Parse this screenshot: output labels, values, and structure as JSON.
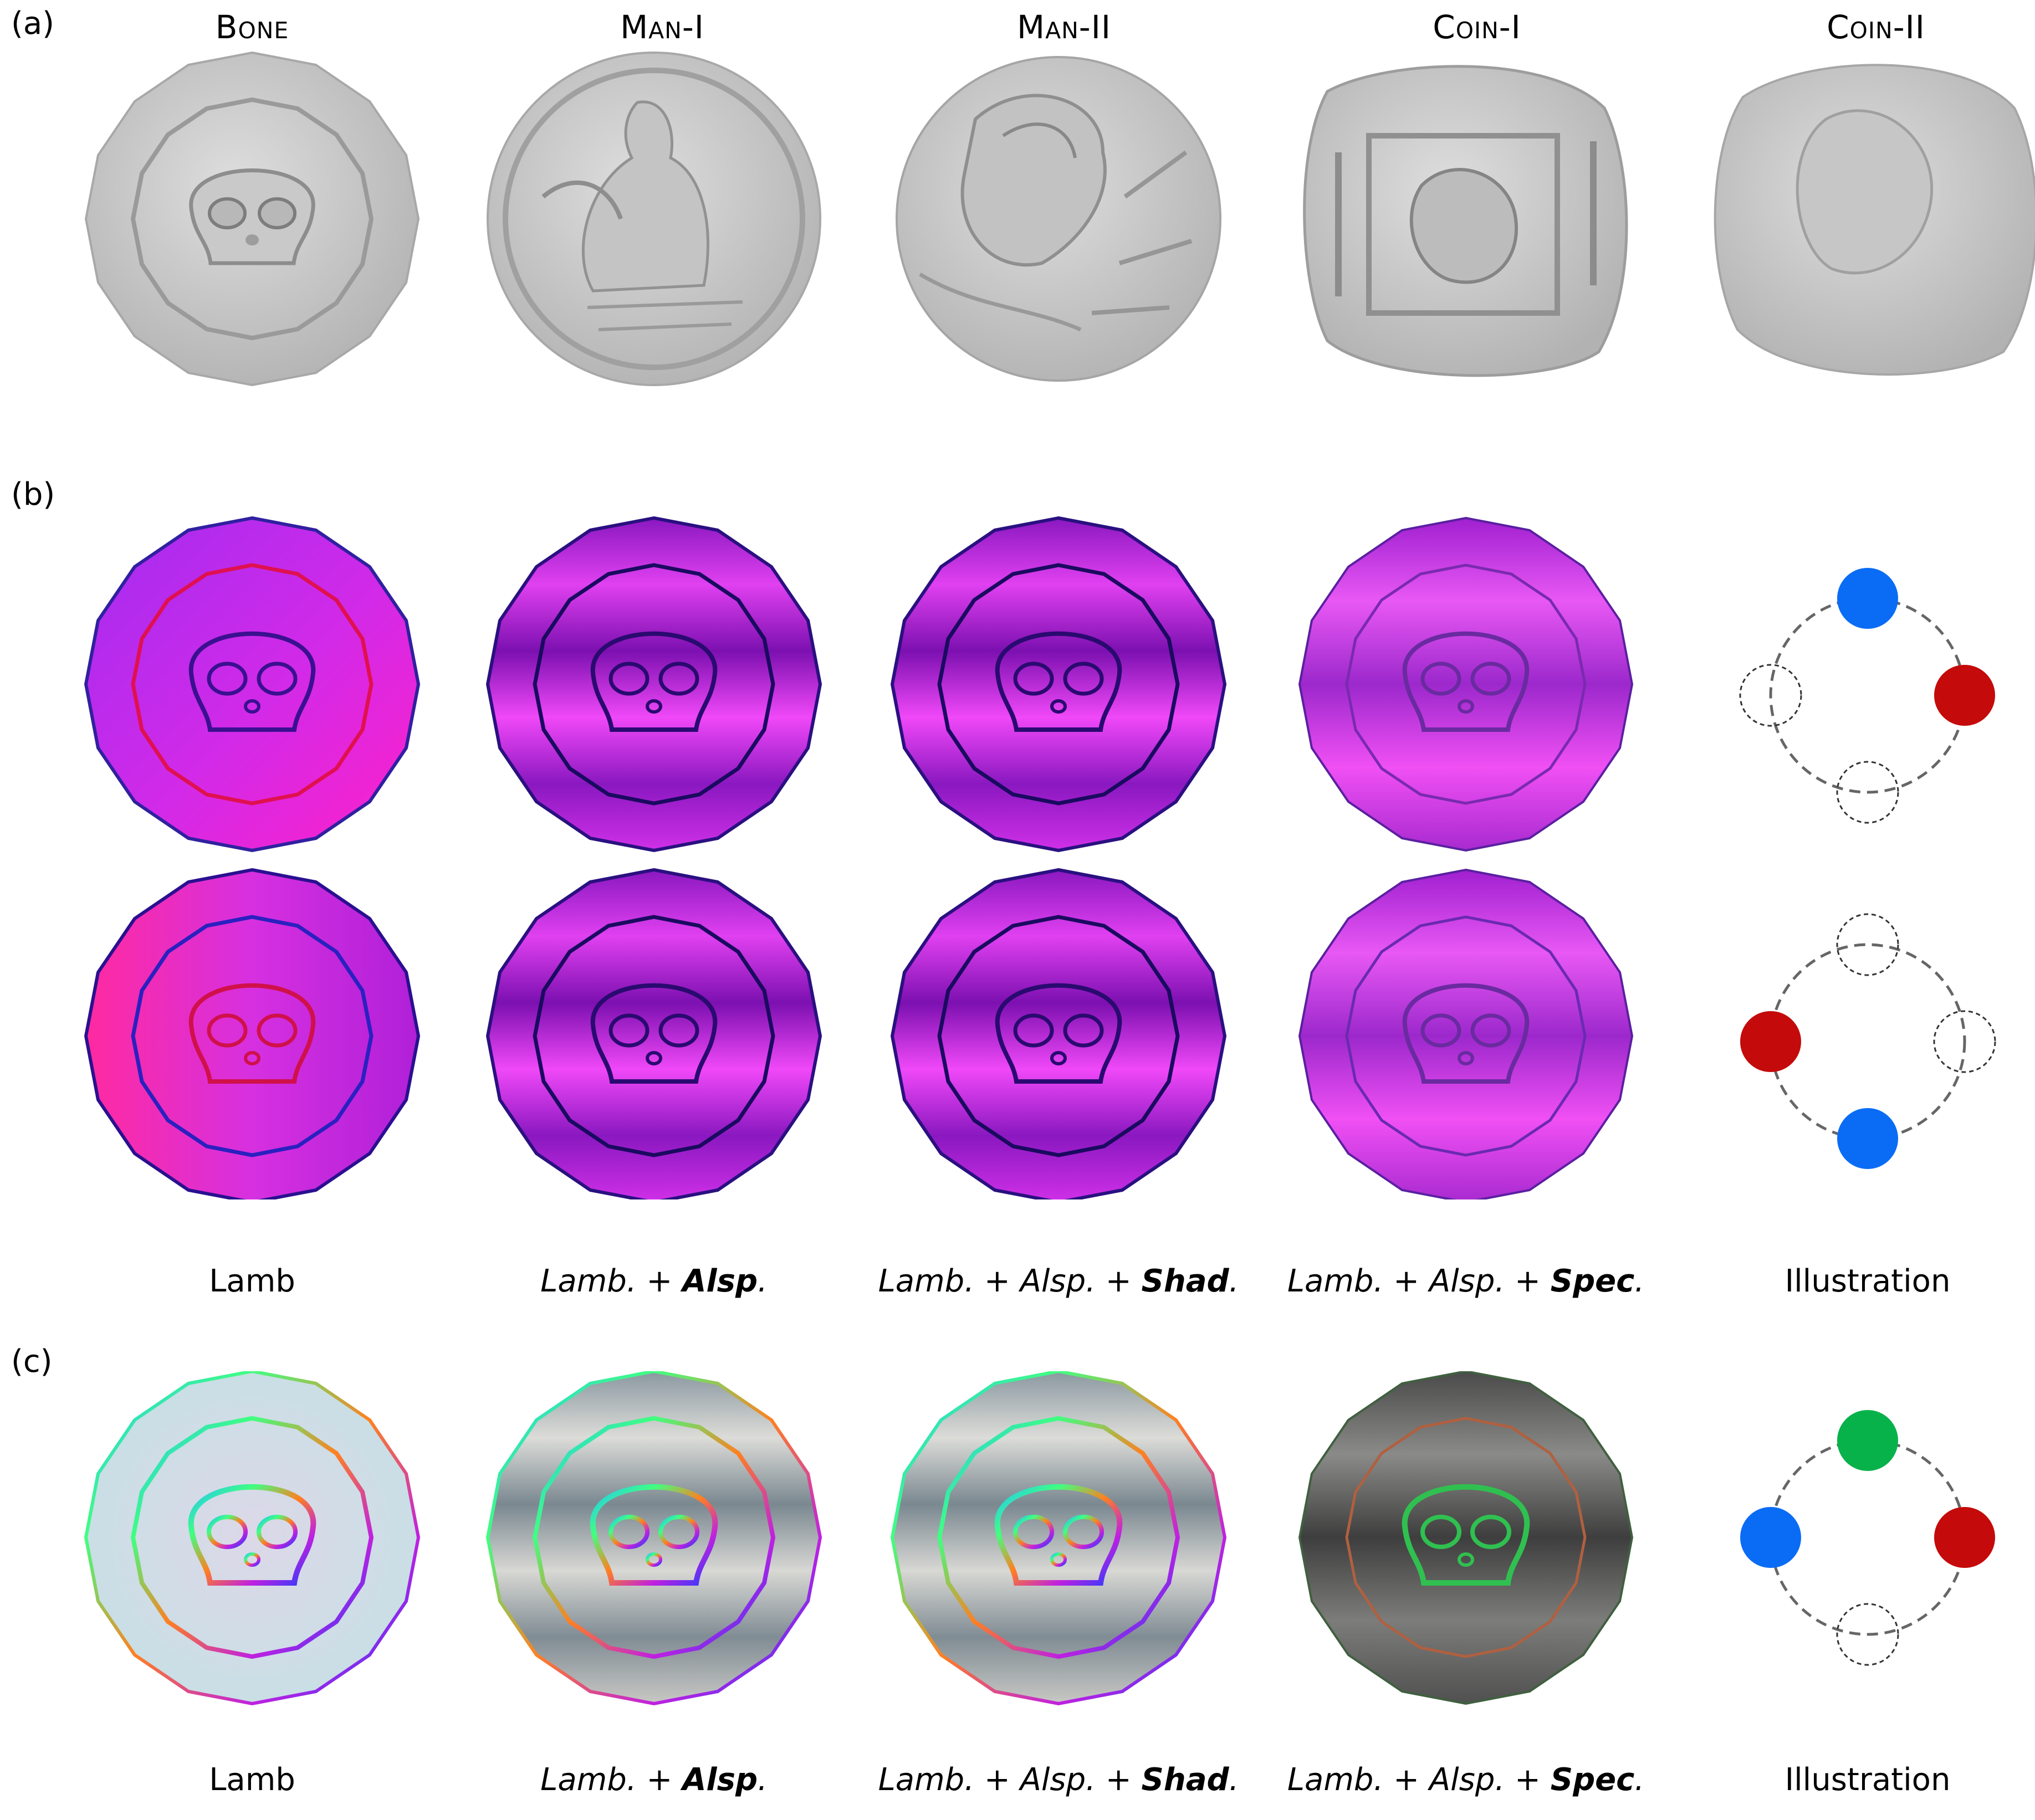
{
  "panel_labels": {
    "a": "(a)",
    "b": "(b)",
    "c": "(c)"
  },
  "row_a_titles": [
    "Bone",
    "Man-I",
    "Man-II",
    "Coin-I",
    "Coin-II"
  ],
  "caption": {
    "lamb": "Lamb",
    "lamb_prefix": "Lamb.",
    "plus": "+",
    "alsp": "Alsp",
    "alsp_plain": "Alsp.",
    "shad": "Shad",
    "spec": "Spec",
    "dot": ".",
    "illustration": "Illustration"
  },
  "colors": {
    "light_blue": "#0a6cf5",
    "light_red": "#c40a0a",
    "light_green": "#07b24a",
    "dashed_circle": "#555555",
    "normal_map_magenta": "#d02ae0",
    "coin_gray": "#c8c8c8"
  }
}
